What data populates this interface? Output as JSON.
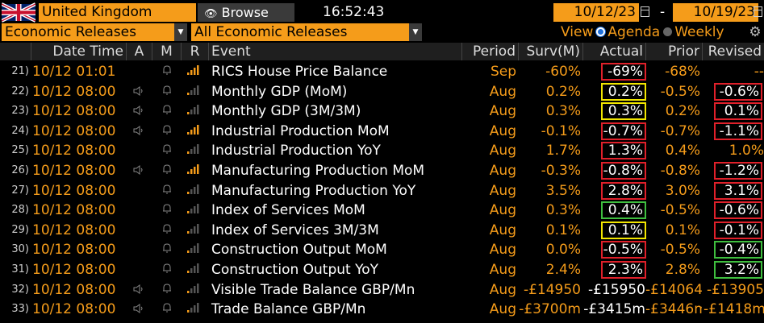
{
  "topbar": {
    "country": "United Kingdom",
    "browse_label": "Browse",
    "time": "16:52:43",
    "start_date": "10/12/23",
    "end_date": "10/19/23",
    "date_separator": "-"
  },
  "filters": {
    "category": "Economic Releases",
    "subcategory": "All Economic Releases",
    "view_label": "View",
    "agenda_label": "Agenda",
    "weekly_label": "Weekly"
  },
  "columns": {
    "datetime": "Date Time",
    "a": "A",
    "m": "M",
    "r": "R",
    "event": "Event",
    "period": "Period",
    "surv": "Surv(M)",
    "actual": "Actual",
    "prior": "Prior",
    "revised": "Revised"
  },
  "colors": {
    "accent": "#f59c1a",
    "box_red": "#e0202a",
    "box_yellow": "#f2e600",
    "box_green": "#3fbf3f"
  },
  "rows": [
    {
      "num": "21)",
      "datetime": "10/12 01:01",
      "speaker": false,
      "bars": 4,
      "event": "RICS House Price Balance",
      "period": "Sep",
      "surv": "-60%",
      "actual": "-69%",
      "actual_box": "red",
      "prior": "-68%",
      "revised": "--",
      "revised_box": ""
    },
    {
      "num": "22)",
      "datetime": "10/12 08:00",
      "speaker": true,
      "bars": 1,
      "event": "Monthly GDP (MoM)",
      "period": "Aug",
      "surv": "0.2%",
      "actual": "0.2%",
      "actual_box": "yellow",
      "prior": "-0.5%",
      "revised": "-0.6%",
      "revised_box": "red"
    },
    {
      "num": "23)",
      "datetime": "10/12 08:00",
      "speaker": true,
      "bars": 1,
      "event": "Monthly GDP (3M/3M)",
      "period": "Aug",
      "surv": "0.3%",
      "actual": "0.3%",
      "actual_box": "yellow",
      "prior": "0.2%",
      "revised": "0.1%",
      "revised_box": "red"
    },
    {
      "num": "24)",
      "datetime": "10/12 08:00",
      "speaker": true,
      "bars": 4,
      "event": "Industrial Production MoM",
      "period": "Aug",
      "surv": "-0.1%",
      "actual": "-0.7%",
      "actual_box": "red",
      "prior": "-0.7%",
      "revised": "-1.1%",
      "revised_box": "red"
    },
    {
      "num": "25)",
      "datetime": "10/12 08:00",
      "speaker": false,
      "bars": 1,
      "event": "Industrial Production YoY",
      "period": "Aug",
      "surv": "1.7%",
      "actual": "1.3%",
      "actual_box": "red",
      "prior": "0.4%",
      "revised": "1.0%",
      "revised_box": ""
    },
    {
      "num": "26)",
      "datetime": "10/12 08:00",
      "speaker": true,
      "bars": 4,
      "event": "Manufacturing Production MoM",
      "period": "Aug",
      "surv": "-0.3%",
      "actual": "-0.8%",
      "actual_box": "red",
      "prior": "-0.8%",
      "revised": "-1.2%",
      "revised_box": "red"
    },
    {
      "num": "27)",
      "datetime": "10/12 08:00",
      "speaker": false,
      "bars": 1,
      "event": "Manufacturing Production YoY",
      "period": "Aug",
      "surv": "3.5%",
      "actual": "2.8%",
      "actual_box": "red",
      "prior": "3.0%",
      "revised": "3.1%",
      "revised_box": "red"
    },
    {
      "num": "28)",
      "datetime": "10/12 08:00",
      "speaker": false,
      "bars": 1,
      "event": "Index of Services MoM",
      "period": "Aug",
      "surv": "0.3%",
      "actual": "0.4%",
      "actual_box": "green",
      "prior": "-0.5%",
      "revised": "-0.6%",
      "revised_box": "red"
    },
    {
      "num": "29)",
      "datetime": "10/12 08:00",
      "speaker": false,
      "bars": 1,
      "event": "Index of Services 3M/3M",
      "period": "Aug",
      "surv": "0.1%",
      "actual": "0.1%",
      "actual_box": "yellow",
      "prior": "0.1%",
      "revised": "-0.1%",
      "revised_box": "red"
    },
    {
      "num": "30)",
      "datetime": "10/12 08:00",
      "speaker": false,
      "bars": 1,
      "event": "Construction Output MoM",
      "period": "Aug",
      "surv": "0.0%",
      "actual": "-0.5%",
      "actual_box": "red",
      "prior": "-0.5%",
      "revised": "-0.4%",
      "revised_box": "green"
    },
    {
      "num": "31)",
      "datetime": "10/12 08:00",
      "speaker": false,
      "bars": 1,
      "event": "Construction Output YoY",
      "period": "Aug",
      "surv": "2.4%",
      "actual": "2.3%",
      "actual_box": "red",
      "prior": "2.8%",
      "revised": "3.2%",
      "revised_box": "green"
    },
    {
      "num": "32)",
      "datetime": "10/12 08:00",
      "speaker": true,
      "bars": 1,
      "event": "Visible Trade Balance GBP/Mn",
      "period": "Aug",
      "surv": "-£14950",
      "actual": "-£15950",
      "actual_box": "",
      "prior": "-£14064",
      "revised": "-£13905",
      "revised_box": ""
    },
    {
      "num": "33)",
      "datetime": "10/12 08:00",
      "speaker": true,
      "bars": 1,
      "event": "Trade Balance GBP/Mn",
      "period": "Aug",
      "surv": "-£3700m",
      "actual": "-£3415m",
      "actual_box": "",
      "prior": "-£3446m",
      "revised": "-£1418m",
      "revised_box": ""
    }
  ]
}
